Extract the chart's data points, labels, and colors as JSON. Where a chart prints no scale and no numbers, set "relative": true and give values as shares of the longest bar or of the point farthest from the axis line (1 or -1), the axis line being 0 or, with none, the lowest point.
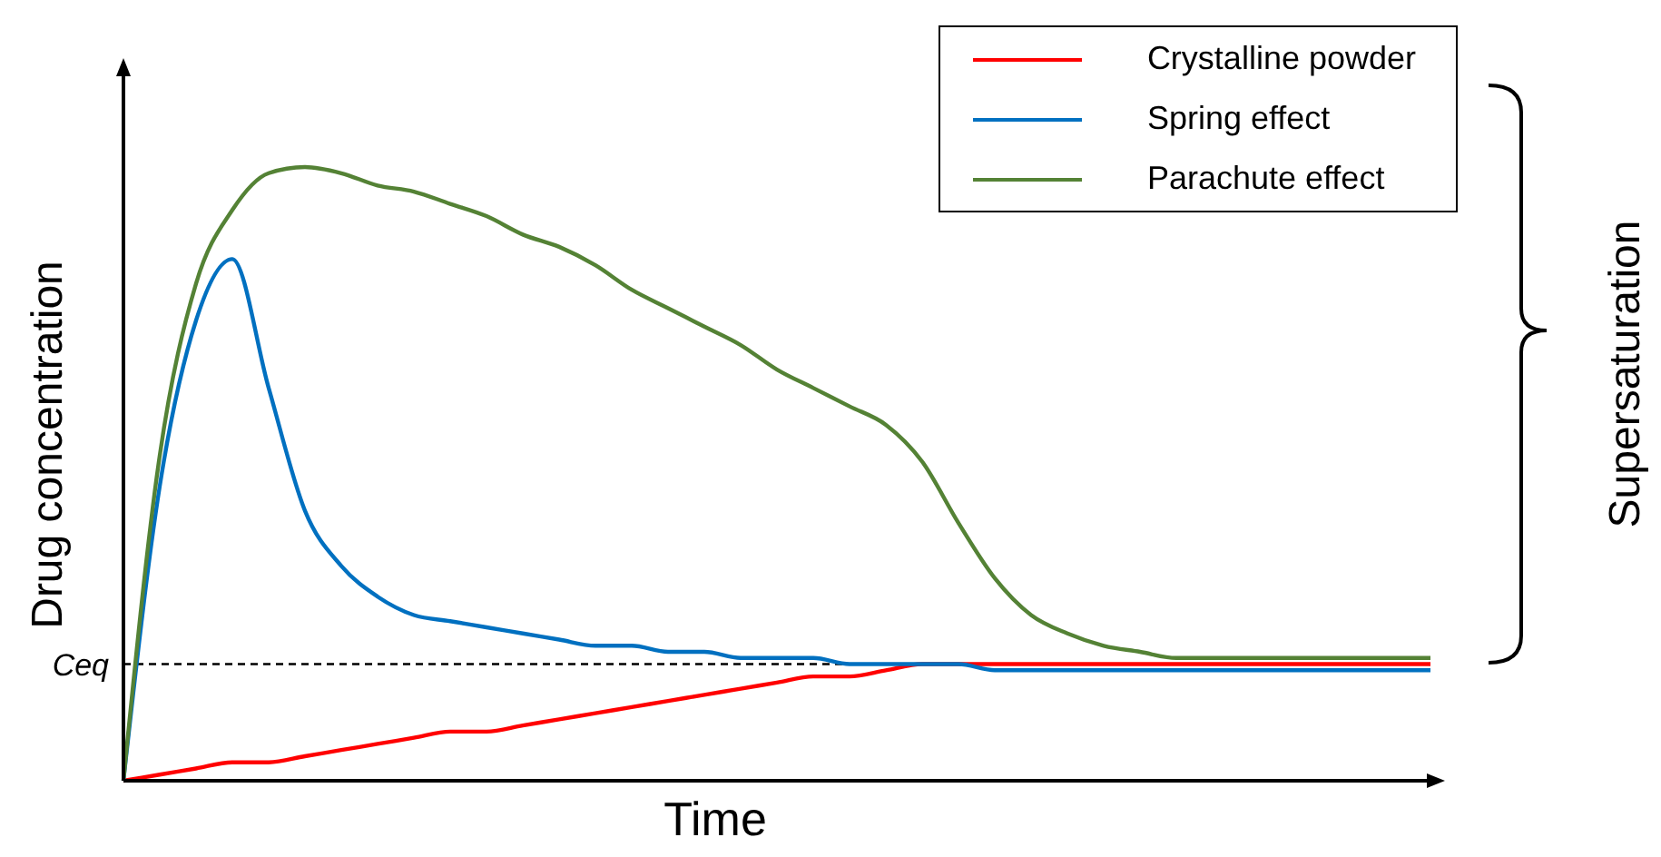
{
  "chart_data": {
    "type": "line",
    "relative": true,
    "xlabel": "Time",
    "ylabel": "Drug concentration",
    "categories": [
      null,
      null,
      null,
      null,
      null,
      null,
      null,
      null,
      null,
      null,
      null,
      null,
      null,
      null,
      null,
      null,
      null,
      null,
      null,
      null,
      null,
      null,
      null,
      null,
      null,
      null,
      null,
      null,
      null,
      null,
      null,
      null,
      null,
      null,
      null,
      null,
      null
    ],
    "series": [
      {
        "name": "Crystalline powder",
        "color": "#ff0000",
        "values": [
          0,
          0.01,
          0.02,
          0.03,
          0.03,
          0.04,
          0.05,
          0.06,
          0.07,
          0.08,
          0.08,
          0.09,
          0.1,
          0.11,
          0.12,
          0.13,
          0.14,
          0.15,
          0.16,
          0.17,
          0.17,
          0.18,
          0.19,
          0.19,
          0.19,
          0.19,
          0.19,
          0.19,
          0.19,
          0.19,
          0.19,
          0.19,
          0.19,
          0.19,
          0.19,
          0.19,
          0.19
        ]
      },
      {
        "name": "Spring effect",
        "color": "#0070c0",
        "values": [
          0,
          0.48,
          0.75,
          0.85,
          0.64,
          0.44,
          0.35,
          0.3,
          0.27,
          0.26,
          0.25,
          0.24,
          0.23,
          0.22,
          0.22,
          0.21,
          0.21,
          0.2,
          0.2,
          0.2,
          0.19,
          0.19,
          0.19,
          0.19,
          0.18,
          0.18,
          0.18,
          0.18,
          0.18,
          0.18,
          0.18,
          0.18,
          0.18,
          0.18,
          0.18,
          0.18,
          0.18
        ]
      },
      {
        "name": "Parachute effect",
        "color": "#548235",
        "values": [
          0,
          0.53,
          0.81,
          0.93,
          0.99,
          1,
          0.99,
          0.97,
          0.96,
          0.94,
          0.92,
          0.89,
          0.87,
          0.84,
          0.8,
          0.77,
          0.74,
          0.71,
          0.67,
          0.64,
          0.61,
          0.58,
          0.52,
          0.42,
          0.33,
          0.27,
          0.24,
          0.22,
          0.21,
          0.2,
          0.2,
          0.2,
          0.2,
          0.2,
          0.2,
          0.2,
          0.2
        ]
      }
    ],
    "ref_lines": [
      {
        "axis": "y",
        "value": 0.19,
        "label": "Ceq",
        "color": "#000000",
        "line_style": "dashed"
      }
    ],
    "annotations": [
      "Supersaturation"
    ],
    "legend": "top right",
    "grid": false,
    "marker": "none",
    "line_style": "solid"
  }
}
